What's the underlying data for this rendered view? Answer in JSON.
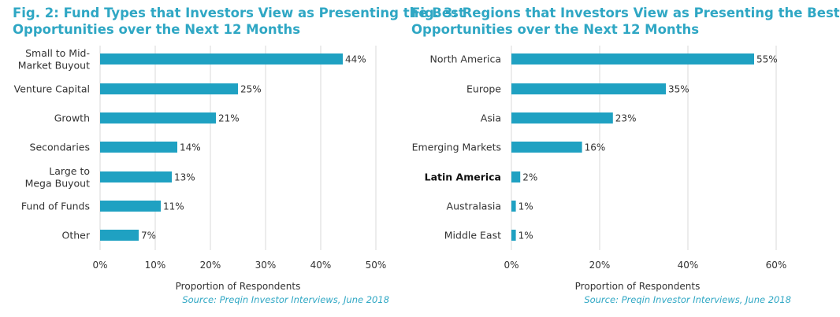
{
  "chart_data": [
    {
      "type": "bar",
      "orientation": "horizontal",
      "title_lines": [
        "Fig. 2: Fund Types that Investors View as Presenting the Best",
        "Opportunities over the Next 12 Months"
      ],
      "categories": [
        [
          "Small to Mid-",
          "Market Buyout"
        ],
        [
          "Venture Capital"
        ],
        [
          "Growth"
        ],
        [
          "Secondaries"
        ],
        [
          "Large to",
          "Mega Buyout"
        ],
        [
          "Fund of Funds"
        ],
        [
          "Other"
        ]
      ],
      "values": [
        44,
        25,
        21,
        14,
        13,
        11,
        7
      ],
      "value_labels": [
        "44%",
        "25%",
        "21%",
        "14%",
        "13%",
        "11%",
        "7%"
      ],
      "xlim": [
        0,
        50
      ],
      "xticks": [
        0,
        10,
        20,
        30,
        40,
        50
      ],
      "xtick_labels": [
        "0%",
        "10%",
        "20%",
        "30%",
        "40%",
        "50%"
      ],
      "xlabel": "Proportion of Respondents",
      "source": "Source: Preqin Investor Interviews, June 2018",
      "bar_color": "#1fa1c2",
      "grid": "vertical"
    },
    {
      "type": "bar",
      "orientation": "horizontal",
      "title_lines": [
        "Fig. 3: Regions that Investors View as Presenting the Best",
        "Opportunities over the Next 12 Months"
      ],
      "categories": [
        [
          "North America"
        ],
        [
          "Europe"
        ],
        [
          "Asia"
        ],
        [
          "Emerging Markets"
        ],
        [
          "Latin America"
        ],
        [
          "Australasia"
        ],
        [
          "Middle East"
        ]
      ],
      "values": [
        55,
        35,
        23,
        16,
        2,
        1,
        1
      ],
      "value_labels": [
        "55%",
        "35%",
        "23%",
        "16%",
        "2%",
        "1%",
        "1%"
      ],
      "xlim": [
        0,
        60
      ],
      "xticks": [
        0,
        20,
        40,
        60
      ],
      "xtick_labels": [
        "0%",
        "20%",
        "40%",
        "60%"
      ],
      "xlabel": "Proportion of Respondents",
      "source": "Source: Preqin Investor Interviews, June 2018",
      "bar_color": "#1fa1c2",
      "grid": "vertical"
    }
  ]
}
